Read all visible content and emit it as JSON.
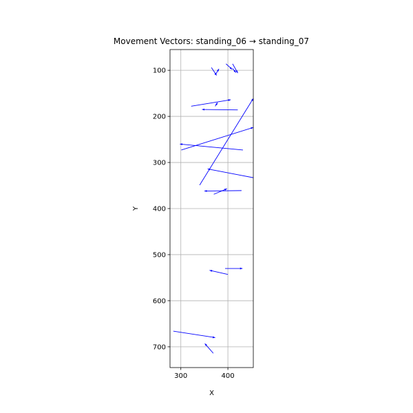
{
  "chart_data": {
    "type": "quiver",
    "title": "Movement Vectors: standing_06 → standing_07",
    "xlabel": "X",
    "ylabel": "Y",
    "xlim": [
      277,
      454
    ],
    "ylim": [
      745,
      55
    ],
    "y_inverted": true,
    "aspect": "equal",
    "grid": true,
    "x_ticks": [
      300,
      400
    ],
    "y_ticks": [
      100,
      200,
      300,
      400,
      500,
      600,
      700
    ],
    "arrow_color": "#0000ff",
    "vectors": [
      {
        "x1": 365,
        "y1": 94,
        "x2": 376,
        "y2": 111
      },
      {
        "x1": 373,
        "y1": 110,
        "x2": 381,
        "y2": 97
      },
      {
        "x1": 396,
        "y1": 86,
        "x2": 409,
        "y2": 98
      },
      {
        "x1": 410,
        "y1": 86,
        "x2": 421,
        "y2": 106
      },
      {
        "x1": 410,
        "y1": 96,
        "x2": 417,
        "y2": 105
      },
      {
        "x1": 322,
        "y1": 178,
        "x2": 406,
        "y2": 164
      },
      {
        "x1": 373,
        "y1": 178,
        "x2": 378,
        "y2": 170
      },
      {
        "x1": 421,
        "y1": 186,
        "x2": 345,
        "y2": 185
      },
      {
        "x1": 340,
        "y1": 349,
        "x2": 454,
        "y2": 161
      },
      {
        "x1": 301,
        "y1": 273,
        "x2": 454,
        "y2": 224
      },
      {
        "x1": 432,
        "y1": 273,
        "x2": 298,
        "y2": 260
      },
      {
        "x1": 454,
        "y1": 333,
        "x2": 357,
        "y2": 314
      },
      {
        "x1": 370,
        "y1": 369,
        "x2": 398,
        "y2": 357
      },
      {
        "x1": 429,
        "y1": 361,
        "x2": 350,
        "y2": 362
      },
      {
        "x1": 394,
        "y1": 530,
        "x2": 431,
        "y2": 530
      },
      {
        "x1": 400,
        "y1": 543,
        "x2": 361,
        "y2": 534
      },
      {
        "x1": 284,
        "y1": 666,
        "x2": 373,
        "y2": 680
      },
      {
        "x1": 369,
        "y1": 714,
        "x2": 351,
        "y2": 693
      }
    ]
  }
}
